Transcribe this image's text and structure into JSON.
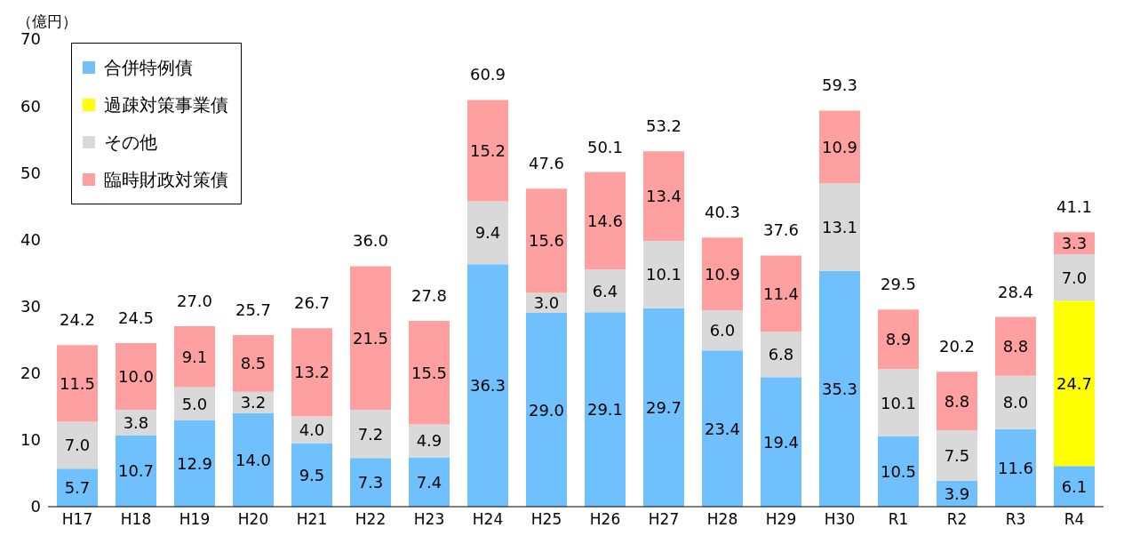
{
  "chart_data": {
    "type": "bar",
    "stacked": true,
    "ylabel": "（億円）",
    "ylim": [
      0,
      70
    ],
    "yticks": [
      0,
      10,
      20,
      30,
      40,
      50,
      60,
      70
    ],
    "grid": false,
    "legend": "top left",
    "categories": [
      "H17",
      "H18",
      "H19",
      "H20",
      "H21",
      "H22",
      "H23",
      "H24",
      "H25",
      "H26",
      "H27",
      "H28",
      "H29",
      "H30",
      "R1",
      "R2",
      "R3",
      "R4"
    ],
    "series": [
      {
        "name": "合併特例債",
        "color": "#6fc0fc",
        "values": [
          5.7,
          10.7,
          12.9,
          14.0,
          9.5,
          7.3,
          7.4,
          36.3,
          29.0,
          29.1,
          29.7,
          23.4,
          19.4,
          35.3,
          10.5,
          3.9,
          11.6,
          6.1
        ],
        "value_labels": [
          "5.7",
          "10.7",
          "12.9",
          "14.0",
          "9.5",
          "7.3",
          "7.4",
          "36.3",
          "29.0",
          "29.1",
          "29.7",
          "23.4",
          "19.4",
          "35.3",
          "10.5",
          "3.9",
          "11.6",
          "6.1"
        ]
      },
      {
        "name": "過疎対策事業債",
        "color": "#ffff00",
        "values": [
          null,
          null,
          null,
          null,
          null,
          null,
          null,
          null,
          null,
          null,
          null,
          null,
          null,
          null,
          null,
          null,
          null,
          24.7
        ],
        "value_labels": [
          null,
          null,
          null,
          null,
          null,
          null,
          null,
          null,
          null,
          null,
          null,
          null,
          null,
          null,
          null,
          null,
          null,
          "24.7"
        ]
      },
      {
        "name": "その他",
        "color": "#d9d9d9",
        "values": [
          7.0,
          3.8,
          5.0,
          3.2,
          4.0,
          7.2,
          4.9,
          9.4,
          3.0,
          6.4,
          10.1,
          6.0,
          6.8,
          13.1,
          10.1,
          7.5,
          8.0,
          7.0
        ],
        "value_labels": [
          "7.0",
          "3.8",
          "5.0",
          "3.2",
          "4.0",
          "7.2",
          "4.9",
          "9.4",
          "3.0",
          "6.4",
          "10.1",
          "6.0",
          "6.8",
          "13.1",
          "10.1",
          "7.5",
          "8.0",
          "7.0"
        ]
      },
      {
        "name": "臨時財政対策債",
        "color": "#ffa0a0",
        "values": [
          11.5,
          10.0,
          9.1,
          8.5,
          13.2,
          21.5,
          15.5,
          15.2,
          15.6,
          14.6,
          13.4,
          10.9,
          11.4,
          10.9,
          8.9,
          8.8,
          8.8,
          3.3
        ],
        "value_labels": [
          "11.5",
          "10.0",
          "9.1",
          "8.5",
          "13.2",
          "21.5",
          "15.5",
          "15.2",
          "15.6",
          "14.6",
          "13.4",
          "10.9",
          "11.4",
          "10.9",
          "8.9",
          "8.8",
          "8.8",
          "3.3"
        ]
      }
    ],
    "totals": [
      "24.2",
      "24.5",
      "27.0",
      "25.7",
      "26.7",
      "36.0",
      "27.8",
      "60.9",
      "47.6",
      "50.1",
      "53.2",
      "40.3",
      "37.6",
      "59.3",
      "29.5",
      "20.2",
      "28.4",
      "41.1"
    ]
  }
}
